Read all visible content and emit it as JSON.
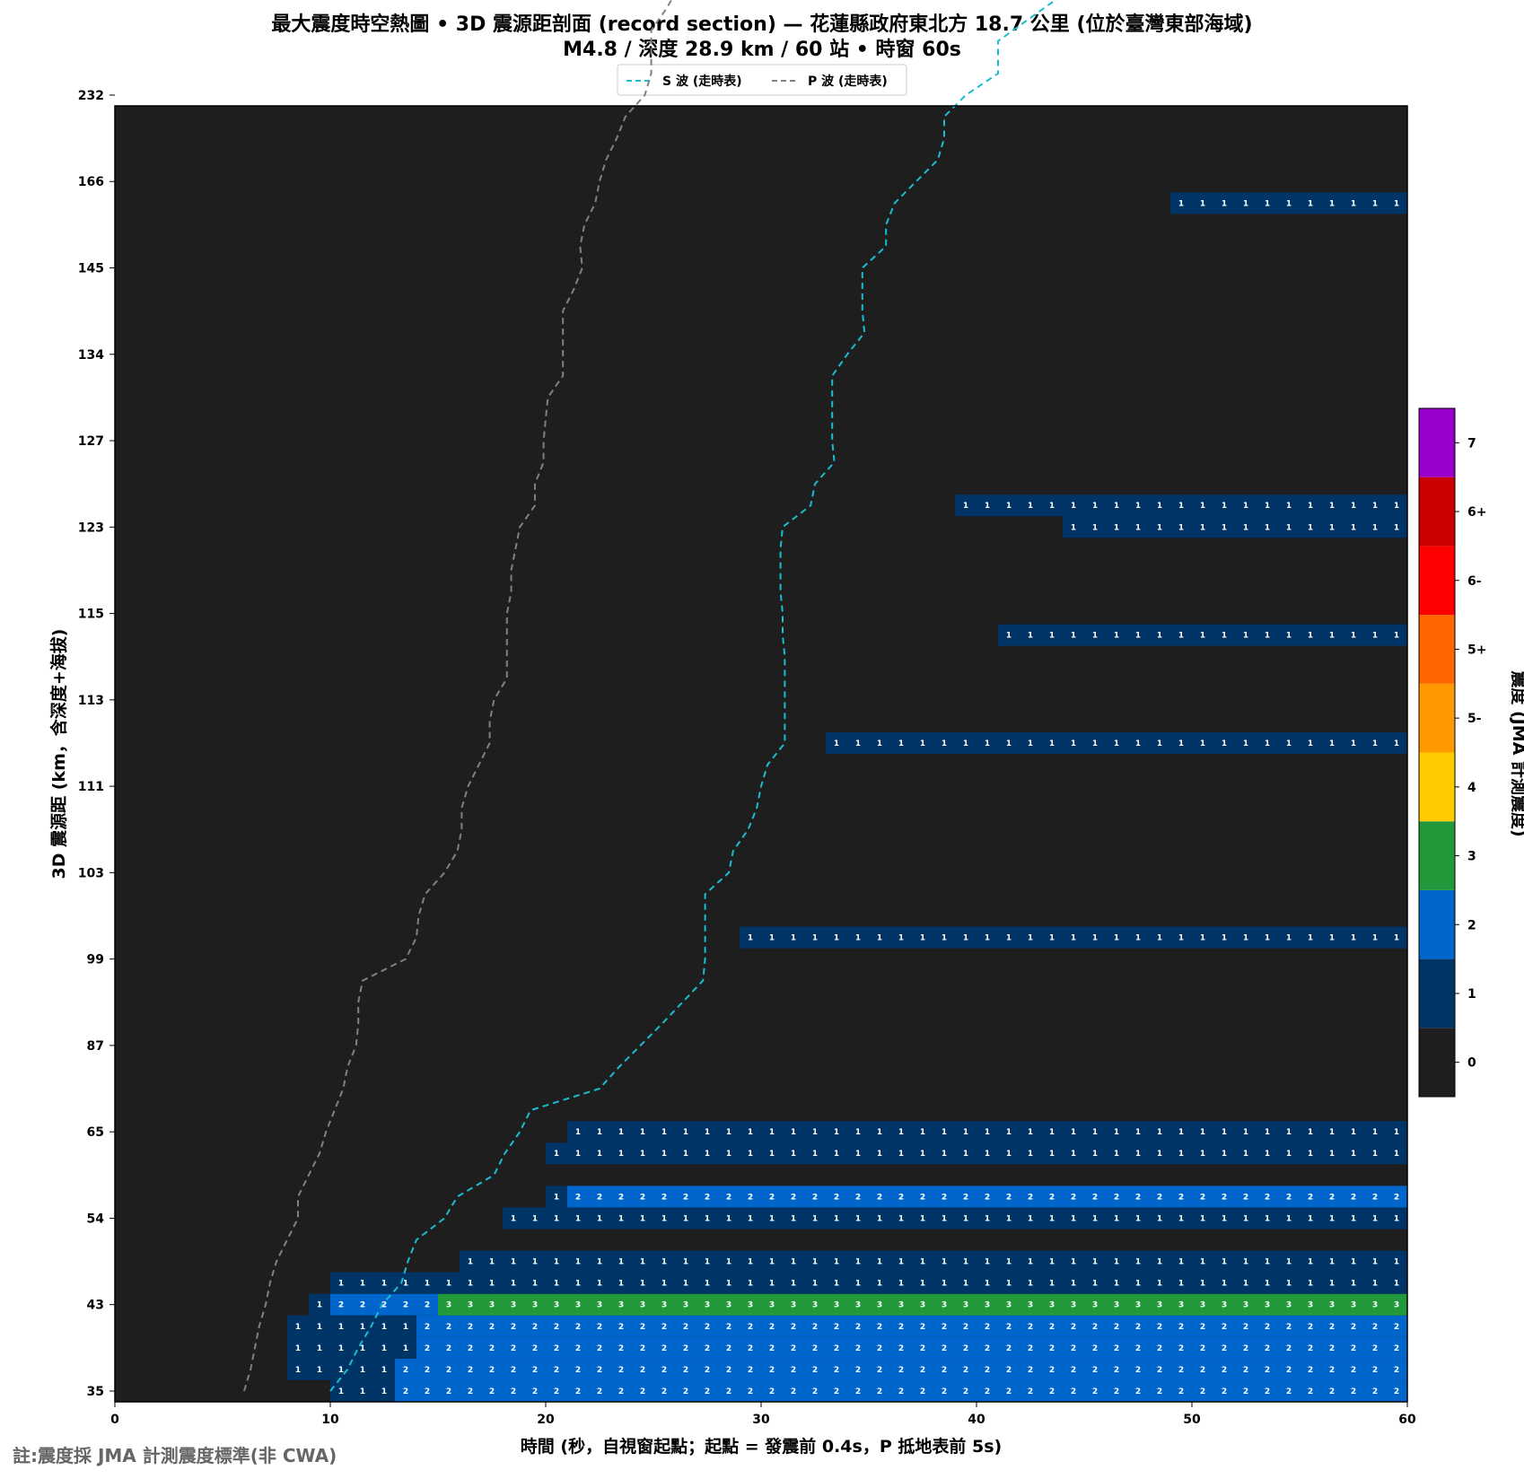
{
  "chart_data": {
    "type": "heatmap",
    "title_line1": "最大震度時空熱圖 • 3D 震源距剖面 (record section) — 花蓮縣政府東北方  18.7  公里 (位於臺灣東部海域)",
    "title_line2": "M4.8 / 深度 28.9 km / 60 站 • 時窗 60s",
    "xlabel": "時間 (秒，自視窗起點；起點 = 發震前 0.4s，P 抵地表前 5s)",
    "ylabel": "3D 震源距 (km，含深度+海拔)",
    "xlim": [
      0,
      60
    ],
    "x_ticks": [
      "0",
      "10",
      "20",
      "30",
      "40",
      "50",
      "60"
    ],
    "y_ticks": [
      "35",
      "43",
      "54",
      "65",
      "87",
      "99",
      "103",
      "111",
      "113",
      "115",
      "123",
      "127",
      "134",
      "145",
      "166",
      "232"
    ],
    "legend": {
      "placement": "top-center",
      "entries": [
        {
          "label": "S 波 (走時表)",
          "color": "#17becf",
          "style": "dashed"
        },
        {
          "label": "P 波 (走時表)",
          "color": "#808080",
          "style": "dashed"
        }
      ]
    },
    "colorbar": {
      "label": "震度 (JMA 計測震度)",
      "levels": [
        {
          "label": "0",
          "color": "#1e1e1e"
        },
        {
          "label": "1",
          "color": "#003366"
        },
        {
          "label": "2",
          "color": "#0066cc"
        },
        {
          "label": "3",
          "color": "#22993a"
        },
        {
          "label": "4",
          "color": "#ffcc00"
        },
        {
          "label": "5-",
          "color": "#ff9900"
        },
        {
          "label": "5+",
          "color": "#ff6600"
        },
        {
          "label": "6-",
          "color": "#ff0000"
        },
        {
          "label": "6+",
          "color": "#cc0000"
        },
        {
          "label": "7",
          "color": "#9900cc"
        }
      ]
    },
    "background_color": "#1e1e1e",
    "rows": [
      {
        "row": 0,
        "segments": [
          [
            10,
            13,
            "1"
          ],
          [
            13,
            60,
            "2"
          ]
        ]
      },
      {
        "row": 1,
        "segments": [
          [
            8,
            13,
            "1"
          ],
          [
            13,
            60,
            "2"
          ]
        ]
      },
      {
        "row": 2,
        "segments": [
          [
            8,
            14,
            "1"
          ],
          [
            14,
            60,
            "2"
          ]
        ]
      },
      {
        "row": 3,
        "segments": [
          [
            8,
            14,
            "1"
          ],
          [
            14,
            60,
            "2"
          ]
        ]
      },
      {
        "row": 4,
        "segments": [
          [
            9,
            10,
            "1"
          ],
          [
            10,
            15,
            "2"
          ],
          [
            15,
            60,
            "3"
          ]
        ]
      },
      {
        "row": 5,
        "segments": [
          [
            10,
            60,
            "1"
          ]
        ]
      },
      {
        "row": 6,
        "segments": [
          [
            16,
            60,
            "1"
          ]
        ]
      },
      {
        "row": 8,
        "segments": [
          [
            18,
            60,
            "1"
          ]
        ]
      },
      {
        "row": 9,
        "segments": [
          [
            20,
            21,
            "1"
          ],
          [
            21,
            60,
            "2"
          ]
        ]
      },
      {
        "row": 11,
        "segments": [
          [
            20,
            60,
            "1"
          ]
        ]
      },
      {
        "row": 12,
        "segments": [
          [
            21,
            60,
            "1"
          ]
        ]
      },
      {
        "row": 21,
        "segments": [
          [
            29,
            60,
            "1"
          ]
        ]
      },
      {
        "row": 30,
        "segments": [
          [
            33,
            60,
            "1"
          ]
        ]
      },
      {
        "row": 35,
        "segments": [
          [
            41,
            60,
            "1"
          ]
        ]
      },
      {
        "row": 40,
        "segments": [
          [
            44,
            60,
            "1"
          ]
        ]
      },
      {
        "row": 41,
        "segments": [
          [
            39,
            60,
            "1"
          ]
        ]
      },
      {
        "row": 55,
        "segments": [
          [
            49,
            60,
            "1"
          ]
        ]
      }
    ],
    "s_wave_travel_time": [
      [
        10.0,
        0.0
      ],
      [
        10.8,
        1.0
      ],
      [
        11.3,
        2.0
      ],
      [
        11.9,
        3.0
      ],
      [
        12.4,
        4.0
      ],
      [
        13.3,
        5.0
      ],
      [
        13.6,
        6.0
      ],
      [
        14.0,
        7.0
      ],
      [
        15.3,
        8.0
      ],
      [
        15.9,
        9.0
      ],
      [
        17.6,
        10.0
      ],
      [
        18.1,
        11.0
      ],
      [
        18.8,
        12.0
      ],
      [
        19.3,
        13.0
      ],
      [
        22.5,
        14.0
      ],
      [
        23.4,
        15.0
      ],
      [
        25.4,
        17.0
      ],
      [
        27.3,
        19.0
      ],
      [
        27.4,
        20.0
      ],
      [
        27.4,
        21.0
      ],
      [
        27.4,
        22.0
      ],
      [
        27.4,
        23.0
      ],
      [
        28.5,
        24.0
      ],
      [
        28.7,
        25.0
      ],
      [
        29.4,
        26.0
      ],
      [
        29.8,
        27.0
      ],
      [
        30.0,
        28.0
      ],
      [
        30.3,
        29.0
      ],
      [
        31.1,
        30.0
      ],
      [
        31.1,
        31.0
      ],
      [
        31.1,
        32.0
      ],
      [
        31.1,
        33.0
      ],
      [
        31.1,
        34.0
      ],
      [
        31.0,
        35.0
      ],
      [
        31.0,
        36.0
      ],
      [
        30.9,
        37.0
      ],
      [
        30.9,
        38.0
      ],
      [
        30.9,
        39.0
      ],
      [
        31.0,
        40.0
      ],
      [
        32.3,
        41.0
      ],
      [
        32.5,
        42.0
      ],
      [
        33.4,
        43.0
      ],
      [
        33.3,
        44.0
      ],
      [
        33.3,
        45.0
      ],
      [
        33.3,
        46.0
      ],
      [
        33.3,
        47.0
      ],
      [
        34.0,
        48.0
      ],
      [
        34.8,
        49.0
      ],
      [
        34.7,
        50.0
      ],
      [
        34.7,
        51.0
      ],
      [
        34.7,
        52.0
      ],
      [
        35.8,
        53.0
      ],
      [
        35.8,
        54.0
      ],
      [
        36.2,
        55.0
      ],
      [
        37.2,
        56.0
      ],
      [
        38.2,
        57.0
      ],
      [
        38.5,
        58.0
      ],
      [
        38.5,
        59.0
      ],
      [
        39.5,
        60.0
      ],
      [
        41.0,
        61.0
      ],
      [
        41.0,
        62.0
      ],
      [
        41.0,
        62.5
      ],
      [
        44.5,
        65.0
      ],
      [
        46.8,
        67.5
      ],
      [
        50.5,
        68.5
      ],
      [
        59.2,
        69.5
      ]
    ],
    "p_wave_travel_time": [
      [
        6.0,
        0.0
      ],
      [
        6.3,
        1.0
      ],
      [
        6.5,
        2.0
      ],
      [
        6.7,
        3.0
      ],
      [
        7.0,
        4.0
      ],
      [
        7.2,
        5.0
      ],
      [
        7.5,
        6.0
      ],
      [
        8.0,
        7.0
      ],
      [
        8.5,
        8.0
      ],
      [
        8.5,
        9.0
      ],
      [
        9.0,
        10.0
      ],
      [
        9.5,
        11.0
      ],
      [
        9.8,
        12.0
      ],
      [
        10.2,
        13.0
      ],
      [
        10.6,
        14.0
      ],
      [
        10.8,
        15.0
      ],
      [
        11.2,
        16.0
      ],
      [
        11.3,
        17.0
      ],
      [
        11.3,
        18.0
      ],
      [
        11.5,
        19.0
      ],
      [
        13.5,
        20.0
      ],
      [
        14.0,
        21.0
      ],
      [
        14.1,
        22.0
      ],
      [
        14.4,
        23.0
      ],
      [
        15.3,
        24.0
      ],
      [
        15.9,
        25.0
      ],
      [
        16.1,
        26.0
      ],
      [
        16.1,
        27.0
      ],
      [
        16.4,
        28.0
      ],
      [
        16.9,
        29.0
      ],
      [
        17.4,
        30.0
      ],
      [
        17.4,
        31.0
      ],
      [
        17.6,
        32.0
      ],
      [
        18.2,
        33.0
      ],
      [
        18.2,
        34.0
      ],
      [
        18.2,
        35.0
      ],
      [
        18.2,
        36.0
      ],
      [
        18.4,
        37.0
      ],
      [
        18.4,
        38.0
      ],
      [
        18.6,
        39.0
      ],
      [
        18.8,
        40.0
      ],
      [
        19.5,
        41.0
      ],
      [
        19.5,
        42.0
      ],
      [
        19.9,
        43.0
      ],
      [
        19.9,
        44.0
      ],
      [
        20.0,
        45.0
      ],
      [
        20.1,
        46.0
      ],
      [
        20.8,
        47.0
      ],
      [
        20.8,
        48.0
      ],
      [
        20.8,
        49.0
      ],
      [
        20.8,
        50.0
      ],
      [
        21.3,
        51.0
      ],
      [
        21.7,
        52.0
      ],
      [
        21.6,
        53.0
      ],
      [
        21.8,
        54.0
      ],
      [
        22.3,
        55.0
      ],
      [
        22.5,
        56.0
      ],
      [
        22.8,
        57.0
      ],
      [
        23.3,
        58.0
      ],
      [
        23.7,
        59.0
      ],
      [
        24.6,
        60.0
      ],
      [
        24.9,
        61.0
      ],
      [
        24.9,
        62.0
      ],
      [
        24.9,
        63.0
      ],
      [
        25.6,
        64.0
      ],
      [
        25.9,
        64.5
      ],
      [
        26.1,
        65.0
      ],
      [
        27.3,
        67.0
      ],
      [
        29.0,
        68.5
      ],
      [
        33.4,
        69.5
      ]
    ]
  },
  "note": "註:震度採 JMA 計測震度標準(非 CWA)"
}
